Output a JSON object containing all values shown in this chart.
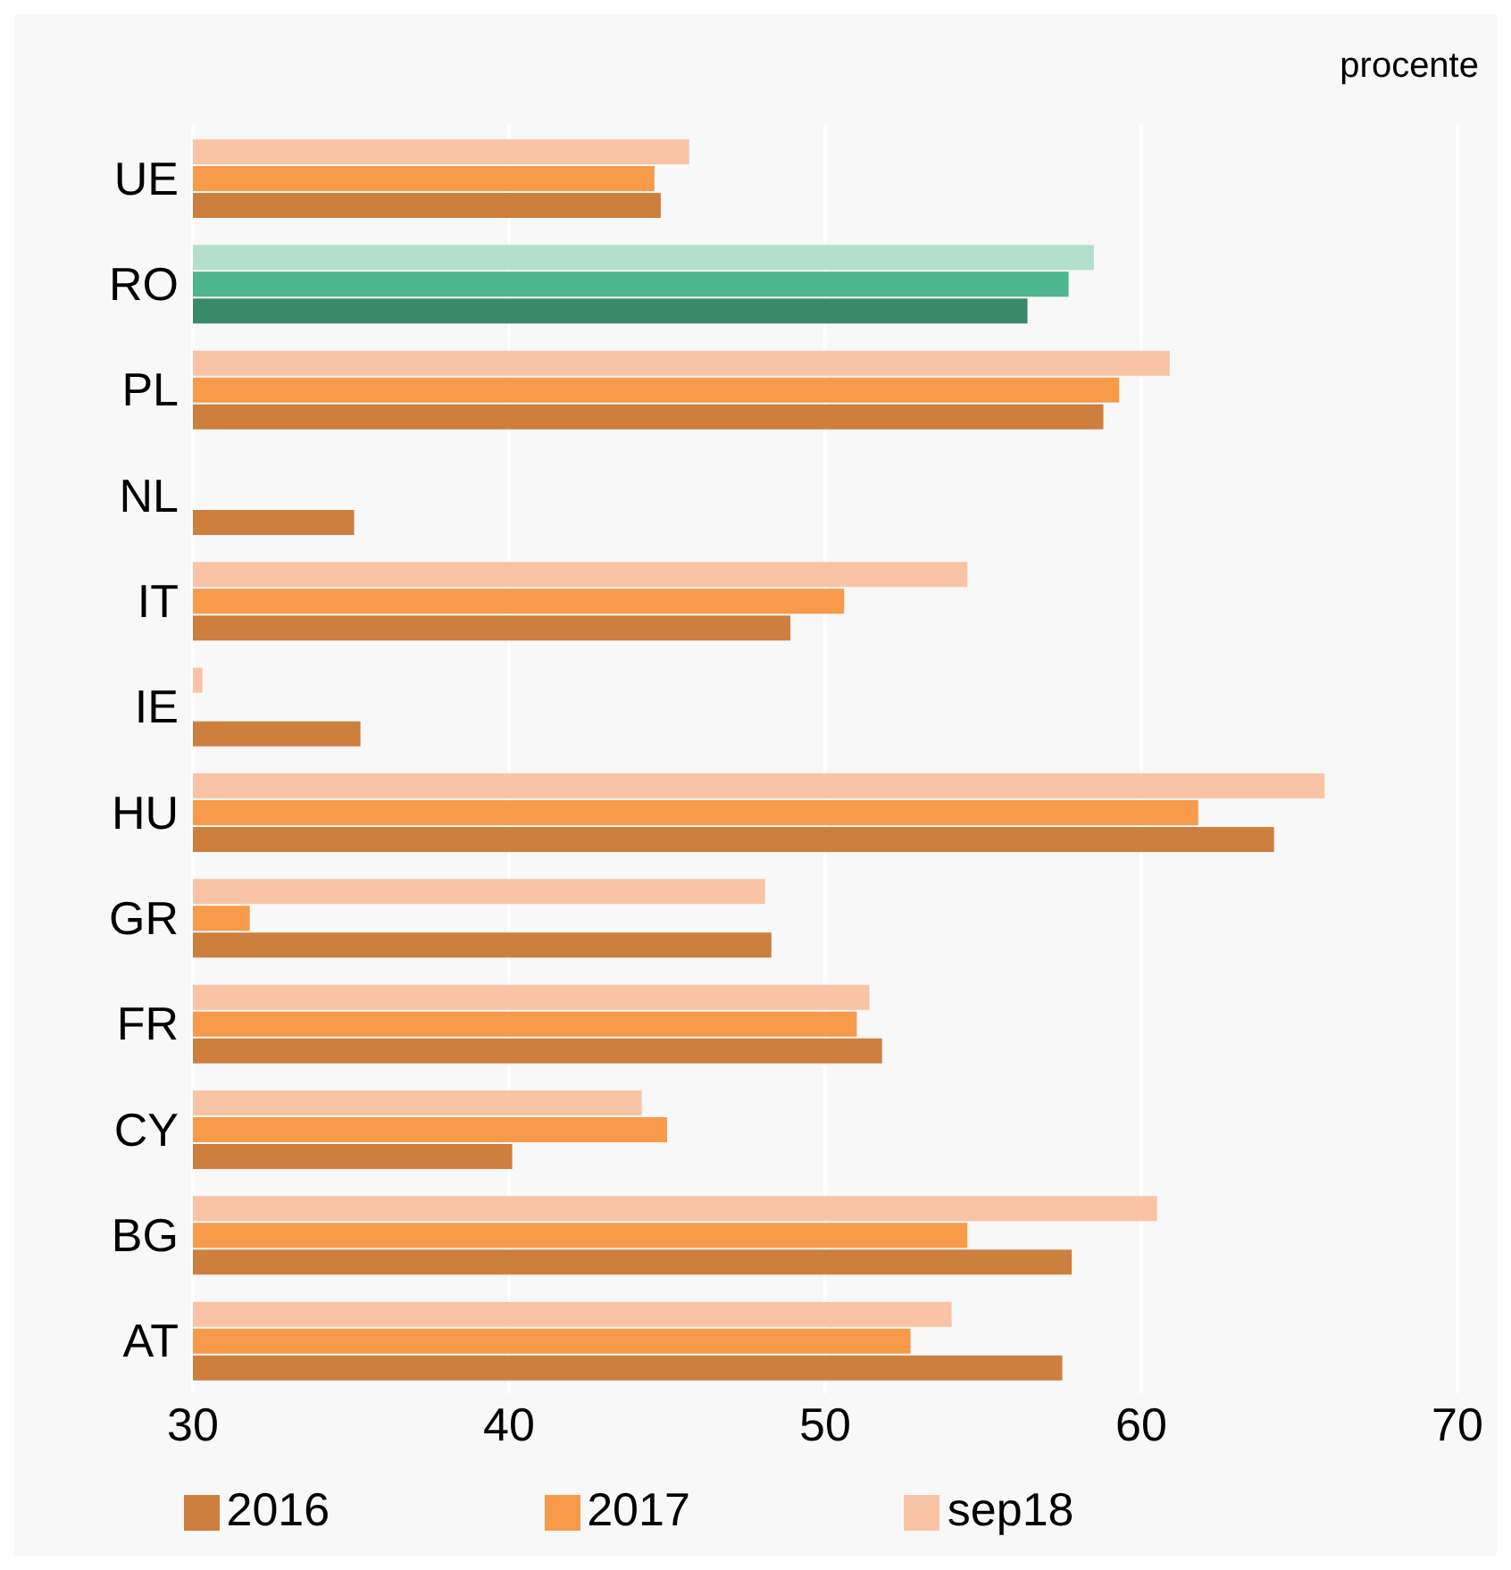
{
  "chart_data": {
    "type": "bar",
    "orientation": "horizontal",
    "categories": [
      "UE",
      "RO",
      "PL",
      "NL",
      "IT",
      "IE",
      "HU",
      "GR",
      "FR",
      "CY",
      "BG",
      "AT"
    ],
    "series": [
      {
        "name": "sep18",
        "color": "#f9c4a6",
        "colors": [
          "#f9c4a6",
          "#b3e0cc",
          "#f9c4a6",
          "#f9c4a6",
          "#f9c4a6",
          "#f9c4a6",
          "#f9c4a6",
          "#f9c4a6",
          "#f9c4a6",
          "#f9c4a6",
          "#f9c4a6",
          "#f9c4a6"
        ],
        "values": [
          45.7,
          58.5,
          60.9,
          null,
          54.5,
          30.3,
          65.8,
          48.1,
          51.4,
          44.2,
          60.5,
          54.0
        ]
      },
      {
        "name": "2017",
        "color": "#f79a4a",
        "colors": [
          "#f79a4a",
          "#4db58f",
          "#f79a4a",
          "#f79a4a",
          "#f79a4a",
          "#f79a4a",
          "#f79a4a",
          "#f79a4a",
          "#f79a4a",
          "#f79a4a",
          "#f79a4a",
          "#f79a4a"
        ],
        "values": [
          44.6,
          57.7,
          59.3,
          null,
          50.6,
          null,
          61.8,
          31.8,
          51.0,
          45.0,
          54.5,
          52.7
        ]
      },
      {
        "name": "2016",
        "color": "#cd7f3e",
        "colors": [
          "#cd7f3e",
          "#3a8a6a",
          "#cd7f3e",
          "#cd7f3e",
          "#cd7f3e",
          "#cd7f3e",
          "#cd7f3e",
          "#cd7f3e",
          "#cd7f3e",
          "#cd7f3e",
          "#cd7f3e",
          "#cd7f3e"
        ],
        "values": [
          44.8,
          56.4,
          58.8,
          35.1,
          48.9,
          35.3,
          64.2,
          48.3,
          51.8,
          40.1,
          57.8,
          57.5
        ]
      }
    ],
    "xlim": [
      30,
      70
    ],
    "xticks": [
      30,
      40,
      50,
      60,
      70
    ],
    "grid": "x",
    "legend": "bottom",
    "annotations": [
      "procente"
    ]
  }
}
